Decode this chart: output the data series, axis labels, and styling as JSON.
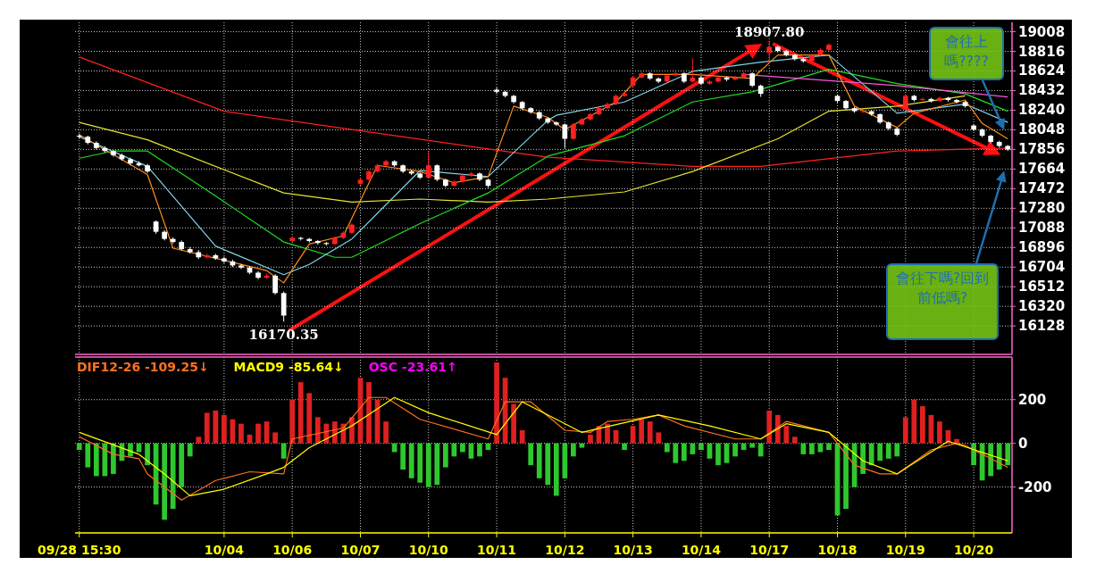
{
  "chart_data": [
    {
      "type": "candlestick",
      "categories": [
        null,
        null,
        null,
        null,
        null,
        null,
        null,
        null,
        null,
        null,
        null,
        null,
        null,
        null,
        null,
        null,
        null,
        null,
        null,
        null,
        null,
        null,
        null,
        null,
        null,
        null,
        null,
        null,
        null,
        null,
        null,
        null,
        null,
        null,
        null,
        null,
        null,
        null,
        null,
        null,
        null,
        null,
        null,
        null,
        null,
        null,
        null,
        null,
        null,
        null,
        null,
        null,
        null,
        null,
        null,
        null,
        null,
        null,
        null,
        null,
        null,
        null,
        null,
        null,
        null,
        null,
        null,
        null,
        null,
        null,
        null,
        null,
        null,
        null,
        null,
        null,
        null,
        null,
        null,
        null,
        null,
        null,
        null,
        null,
        null,
        null,
        null,
        null,
        null,
        null,
        null,
        null,
        null,
        null,
        null,
        null,
        null,
        null,
        null,
        null,
        null,
        null,
        null,
        null,
        null,
        null,
        null,
        null,
        null,
        null
      ],
      "ohlc": [
        [
          17990,
          18010,
          17960,
          17980
        ],
        [
          17980,
          17990,
          17905,
          17920
        ],
        [
          17920,
          17935,
          17855,
          17870
        ],
        [
          17870,
          17885,
          17825,
          17840
        ],
        [
          17840,
          17850,
          17785,
          17800
        ],
        [
          17800,
          17815,
          17745,
          17760
        ],
        [
          17760,
          17775,
          17700,
          17720
        ],
        [
          17720,
          17740,
          17690,
          17700
        ],
        [
          17700,
          17715,
          17625,
          17640
        ],
        [
          17150,
          17160,
          17030,
          17050
        ],
        [
          17050,
          17065,
          16965,
          16980
        ],
        [
          16980,
          16995,
          16935,
          16950
        ],
        [
          16950,
          16965,
          16865,
          16880
        ],
        [
          16880,
          16900,
          16835,
          16850
        ],
        [
          16850,
          16870,
          16785,
          16800
        ],
        [
          16800,
          16835,
          16790,
          16820
        ],
        [
          16820,
          16835,
          16775,
          16790
        ],
        [
          16790,
          16805,
          16745,
          16760
        ],
        [
          16760,
          16775,
          16705,
          16720
        ],
        [
          16720,
          16735,
          16685,
          16700
        ],
        [
          16700,
          16715,
          16635,
          16650
        ],
        [
          16650,
          16665,
          16585,
          16600
        ],
        [
          16600,
          16640,
          16590,
          16620
        ],
        [
          16620,
          16635,
          16435,
          16450
        ],
        [
          16450,
          16465,
          16170.35,
          16230
        ],
        [
          16960,
          17005,
          16950,
          16990
        ],
        [
          16990,
          17000,
          16965,
          16980
        ],
        [
          16980,
          16990,
          16945,
          16960
        ],
        [
          16960,
          16970,
          16925,
          16940
        ],
        [
          16940,
          16950,
          16915,
          16930
        ],
        [
          16930,
          17005,
          16920,
          16990
        ],
        [
          16990,
          17055,
          16980,
          17040
        ],
        [
          17040,
          17135,
          17030,
          17120
        ],
        [
          17520,
          17575,
          17500,
          17560
        ],
        [
          17560,
          17655,
          17550,
          17640
        ],
        [
          17640,
          17715,
          17630,
          17700
        ],
        [
          17700,
          17755,
          17690,
          17740
        ],
        [
          17740,
          17750,
          17685,
          17700
        ],
        [
          17700,
          17710,
          17625,
          17640
        ],
        [
          17640,
          17655,
          17605,
          17620
        ],
        [
          17620,
          17630,
          17565,
          17580
        ],
        [
          17580,
          17843,
          17570,
          17700
        ],
        [
          17700,
          17710,
          17545,
          17560
        ],
        [
          17560,
          17570,
          17485,
          17500
        ],
        [
          17500,
          17555,
          17490,
          17540
        ],
        [
          17540,
          17615,
          17530,
          17600
        ],
        [
          17600,
          17635,
          17590,
          17620
        ],
        [
          17620,
          17630,
          17545,
          17560
        ],
        [
          17560,
          17570,
          17480,
          17500
        ],
        [
          18440,
          18460,
          18400,
          18420
        ],
        [
          18420,
          18430,
          18365,
          18380
        ],
        [
          18380,
          18390,
          18305,
          18320
        ],
        [
          18320,
          18330,
          18245,
          18260
        ],
        [
          18260,
          18270,
          18205,
          18220
        ],
        [
          18220,
          18230,
          18145,
          18160
        ],
        [
          18160,
          18170,
          18105,
          18120
        ],
        [
          18120,
          18130,
          18085,
          18100
        ],
        [
          18100,
          18110,
          17870,
          17960
        ],
        [
          17960,
          18115,
          17950,
          18100
        ],
        [
          18100,
          18165,
          18090,
          18150
        ],
        [
          18150,
          18215,
          18140,
          18200
        ],
        [
          18200,
          18275,
          18190,
          18260
        ],
        [
          18260,
          18315,
          18250,
          18300
        ],
        [
          18300,
          18395,
          18290,
          18380
        ],
        [
          18380,
          18415,
          18370,
          18400
        ],
        [
          18480,
          18575,
          18470,
          18560
        ],
        [
          18560,
          18615,
          18550,
          18600
        ],
        [
          18600,
          18610,
          18535,
          18550
        ],
        [
          18550,
          18560,
          18505,
          18520
        ],
        [
          18520,
          18595,
          18510,
          18580
        ],
        [
          18580,
          18615,
          18570,
          18600
        ],
        [
          18600,
          18610,
          18505,
          18520
        ],
        [
          18520,
          18746,
          18510,
          18560
        ],
        [
          18560,
          18570,
          18485,
          18500
        ],
        [
          18500,
          18535,
          18490,
          18520
        ],
        [
          18520,
          18575,
          18510,
          18560
        ],
        [
          18560,
          18570,
          18525,
          18540
        ],
        [
          18540,
          18575,
          18530,
          18560
        ],
        [
          18560,
          18615,
          18550,
          18600
        ],
        [
          18600,
          18610,
          18465,
          18480
        ],
        [
          18480,
          18490,
          18370,
          18400
        ],
        [
          18800,
          18907.8,
          18700,
          18860
        ],
        [
          18860,
          18870,
          18805,
          18820
        ],
        [
          18820,
          18830,
          18765,
          18780
        ],
        [
          18780,
          18790,
          18725,
          18740
        ],
        [
          18740,
          18750,
          18705,
          18720
        ],
        [
          18720,
          18795,
          18710,
          18780
        ],
        [
          18780,
          18845,
          18770,
          18830
        ],
        [
          18830,
          18895,
          18820,
          18880
        ],
        [
          18380,
          18395,
          18315,
          18330
        ],
        [
          18330,
          18340,
          18245,
          18260
        ],
        [
          18260,
          18270,
          18215,
          18230
        ],
        [
          18230,
          18250,
          18215,
          18230
        ],
        [
          18230,
          18240,
          18185,
          18200
        ],
        [
          18200,
          18210,
          18105,
          18120
        ],
        [
          18120,
          18130,
          18045,
          18060
        ],
        [
          18060,
          18070,
          17985,
          18000
        ],
        [
          18250,
          18395,
          18240,
          18380
        ],
        [
          18380,
          18390,
          18325,
          18340
        ],
        [
          18340,
          18365,
          18330,
          18350
        ],
        [
          18350,
          18360,
          18315,
          18330
        ],
        [
          18330,
          18375,
          18320,
          18360
        ],
        [
          18360,
          18370,
          18325,
          18340
        ],
        [
          18340,
          18350,
          18305,
          18320
        ],
        [
          18320,
          18330,
          18265,
          18280
        ],
        [
          18090,
          18100,
          18035,
          18050
        ],
        [
          18050,
          18060,
          17975,
          17990
        ],
        [
          17990,
          18000,
          17915,
          17930
        ],
        [
          17930,
          17940,
          17875,
          17890
        ],
        [
          17890,
          17900,
          17840,
          17855
        ]
      ],
      "series": [
        {
          "type": "line",
          "color": "#ff2020",
          "values": [
            18760,
            null,
            null,
            null,
            null,
            null,
            null,
            null,
            null,
            null,
            null,
            null,
            null,
            null,
            null,
            null,
            null,
            18230,
            null,
            null,
            null,
            null,
            null,
            null,
            null,
            null,
            null,
            null,
            null,
            null,
            null,
            null,
            18050,
            null,
            null,
            null,
            null,
            null,
            null,
            null,
            null,
            null,
            null,
            null,
            null,
            null,
            null,
            null,
            17860,
            null,
            null,
            null,
            null,
            null,
            null,
            17780,
            null,
            null,
            null,
            null,
            null,
            null,
            null,
            null,
            null,
            null,
            null,
            null,
            null,
            null,
            null,
            null,
            17690,
            null,
            null,
            null,
            null,
            null,
            null,
            null,
            17690,
            null,
            null,
            null,
            null,
            null,
            null,
            null,
            null,
            null,
            null,
            null,
            null,
            null,
            null,
            null,
            17840,
            null,
            null,
            null,
            null,
            null,
            null,
            null,
            null,
            null,
            null,
            null,
            null,
            17870
          ]
        },
        {
          "type": "line",
          "color": "#e6e62e",
          "values": [
            18120,
            null,
            null,
            null,
            null,
            null,
            null,
            null,
            17950,
            null,
            null,
            null,
            null,
            null,
            null,
            null,
            null,
            null,
            null,
            null,
            null,
            null,
            null,
            null,
            17430,
            null,
            null,
            null,
            null,
            null,
            null,
            null,
            17340,
            null,
            null,
            null,
            null,
            null,
            null,
            null,
            17370,
            null,
            null,
            null,
            null,
            null,
            null,
            null,
            17340,
            null,
            null,
            null,
            null,
            null,
            null,
            17370,
            null,
            null,
            null,
            null,
            null,
            null,
            null,
            null,
            17440,
            null,
            null,
            null,
            null,
            null,
            null,
            null,
            17640,
            null,
            null,
            null,
            null,
            null,
            null,
            null,
            null,
            null,
            17960,
            null,
            null,
            null,
            null,
            null,
            18230,
            null,
            null,
            null,
            null,
            null,
            null,
            null,
            18280,
            null,
            null,
            null,
            null,
            null,
            null,
            null,
            18380,
            null,
            null,
            null,
            null,
            null
          ]
        },
        {
          "type": "line",
          "color": "#22dd22",
          "values": [
            17770,
            null,
            null,
            null,
            17840,
            null,
            null,
            null,
            17840,
            null,
            null,
            null,
            null,
            null,
            null,
            null,
            17400,
            null,
            null,
            null,
            null,
            null,
            null,
            null,
            16950,
            null,
            null,
            null,
            null,
            null,
            16800,
            null,
            16800,
            null,
            null,
            null,
            null,
            null,
            null,
            null,
            17130,
            null,
            null,
            null,
            null,
            null,
            null,
            null,
            17430,
            null,
            null,
            null,
            null,
            null,
            null,
            17790,
            null,
            null,
            null,
            null,
            null,
            null,
            null,
            null,
            17990,
            null,
            null,
            null,
            null,
            null,
            null,
            null,
            18320,
            null,
            null,
            null,
            null,
            null,
            null,
            18420,
            null,
            null,
            null,
            null,
            null,
            null,
            null,
            null,
            18640,
            null,
            null,
            null,
            null,
            null,
            null,
            null,
            18500,
            null,
            null,
            null,
            null,
            null,
            null,
            null,
            18400,
            null,
            null,
            null,
            null,
            18230
          ]
        },
        {
          "type": "line",
          "color": "#7fd4e6",
          "values": [
            17980,
            null,
            null,
            null,
            null,
            null,
            null,
            null,
            17690,
            null,
            null,
            null,
            null,
            null,
            null,
            null,
            16910,
            null,
            null,
            null,
            null,
            null,
            null,
            null,
            16630,
            null,
            null,
            16730,
            null,
            null,
            null,
            null,
            16980,
            null,
            null,
            null,
            null,
            null,
            null,
            null,
            17650,
            null,
            null,
            null,
            null,
            null,
            null,
            null,
            17590,
            null,
            null,
            null,
            null,
            null,
            null,
            18140,
            18190,
            null,
            null,
            null,
            null,
            null,
            null,
            null,
            18320,
            null,
            null,
            null,
            null,
            null,
            null,
            null,
            18620,
            null,
            null,
            null,
            null,
            null,
            null,
            null,
            18710,
            null,
            null,
            null,
            null,
            null,
            null,
            null,
            18780,
            null,
            null,
            null,
            null,
            null,
            null,
            null,
            18210,
            null,
            null,
            null,
            null,
            null,
            null,
            null,
            18300,
            null,
            null,
            null,
            null,
            18120
          ]
        },
        {
          "type": "line",
          "color": "#ff55dd",
          "values": [
            null,
            null,
            null,
            null,
            null,
            null,
            null,
            null,
            null,
            null,
            null,
            null,
            null,
            null,
            null,
            null,
            null,
            null,
            null,
            null,
            null,
            null,
            null,
            null,
            null,
            null,
            null,
            null,
            null,
            null,
            null,
            null,
            null,
            null,
            null,
            null,
            null,
            null,
            null,
            null,
            null,
            null,
            null,
            null,
            null,
            null,
            null,
            null,
            null,
            null,
            null,
            null,
            null,
            null,
            null,
            null,
            null,
            null,
            null,
            null,
            null,
            null,
            null,
            null,
            null,
            null,
            null,
            null,
            null,
            null,
            null,
            null,
            null,
            null,
            null,
            null,
            null,
            null,
            18590,
            null,
            null,
            null,
            null,
            null,
            null,
            null,
            null,
            null,
            null,
            null,
            null,
            null,
            null,
            null,
            null,
            null,
            18480,
            null,
            null,
            null,
            null,
            null,
            null,
            null,
            null,
            null,
            null,
            null,
            null,
            18370
          ]
        },
        {
          "type": "line",
          "color": "#ff8c1a",
          "values": [
            18000,
            null,
            null,
            null,
            null,
            null,
            null,
            null,
            17610,
            null,
            null,
            16890,
            null,
            null,
            null,
            null,
            null,
            null,
            null,
            null,
            null,
            null,
            16670,
            null,
            16550,
            null,
            null,
            16930,
            null,
            null,
            null,
            17010,
            null,
            null,
            null,
            17700,
            null,
            null,
            null,
            null,
            17640,
            null,
            null,
            null,
            17530,
            null,
            null,
            null,
            17590,
            null,
            null,
            18280,
            null,
            null,
            null,
            18170,
            null,
            18050,
            null,
            null,
            null,
            null,
            null,
            18320,
            null,
            null,
            18590,
            null,
            null,
            null,
            null,
            null,
            18590,
            null,
            null,
            null,
            null,
            null,
            null,
            18550,
            null,
            null,
            18780,
            null,
            null,
            null,
            null,
            null,
            18780,
            null,
            null,
            18280,
            null,
            null,
            null,
            null,
            18070,
            null,
            18210,
            null,
            null,
            null,
            null,
            null,
            18340,
            null,
            18110,
            null,
            null,
            17960
          ]
        }
      ],
      "ylim": [
        15850,
        19100
      ],
      "yticks": [
        16128,
        16320,
        16512,
        16704,
        16896,
        17088,
        17280,
        17472,
        17664,
        17856,
        18048,
        18240,
        18432,
        18624,
        18816,
        19008
      ],
      "grid": true,
      "tick_labels": "y",
      "annotations": [
        {
          "text": "16170.35",
          "y": 16170.35
        },
        {
          "text": "18907.80",
          "y": 18907.8
        },
        "會往上嗎????",
        "會往下嗎?回到前低嗎?"
      ]
    },
    {
      "type": "bar",
      "categories": [
        "09/28 15:30",
        null,
        null,
        null,
        null,
        null,
        null,
        null,
        null,
        null,
        null,
        null,
        null,
        null,
        null,
        null,
        null,
        "10/04",
        null,
        null,
        null,
        null,
        null,
        null,
        null,
        "10/06",
        null,
        null,
        null,
        null,
        null,
        null,
        null,
        "10/07",
        null,
        null,
        null,
        null,
        null,
        null,
        null,
        "10/10",
        null,
        null,
        null,
        null,
        null,
        null,
        null,
        "10/11",
        null,
        null,
        null,
        null,
        null,
        null,
        null,
        "10/12",
        null,
        null,
        null,
        null,
        null,
        null,
        null,
        "10/13",
        null,
        null,
        null,
        null,
        null,
        null,
        null,
        "10/14",
        null,
        null,
        null,
        null,
        null,
        null,
        null,
        "10/17",
        null,
        null,
        null,
        null,
        null,
        null,
        null,
        "10/18",
        null,
        null,
        null,
        null,
        null,
        null,
        null,
        "10/19",
        null,
        null,
        null,
        null,
        null,
        null,
        null,
        "10/20",
        null,
        null,
        null,
        null
      ],
      "series": [
        {
          "name": "DIF12-26 -109.25↓",
          "type": "line",
          "color": "#ff7020",
          "values": [
            30,
            null,
            null,
            null,
            -50,
            null,
            null,
            -70,
            -140,
            null,
            null,
            null,
            -260,
            null,
            null,
            null,
            -170,
            null,
            null,
            null,
            -130,
            null,
            null,
            null,
            -140,
            20,
            null,
            null,
            null,
            null,
            null,
            70,
            null,
            null,
            210,
            null,
            210,
            null,
            null,
            null,
            110,
            null,
            null,
            null,
            null,
            null,
            null,
            null,
            20,
            null,
            190,
            null,
            null,
            190,
            null,
            null,
            null,
            60,
            null,
            null,
            50,
            null,
            100,
            null,
            null,
            110,
            null,
            null,
            130,
            null,
            null,
            80,
            null,
            null,
            null,
            null,
            null,
            20,
            null,
            null,
            20,
            null,
            null,
            100,
            null,
            null,
            null,
            null,
            50,
            null,
            null,
            -100,
            null,
            null,
            -140,
            null,
            -140,
            null,
            null,
            null,
            -30,
            null,
            null,
            0,
            -10,
            null,
            null,
            null,
            null,
            -110
          ]
        },
        {
          "name": "MACD9 -85.64↓",
          "type": "line",
          "color": "#ffff00",
          "values": [
            50,
            null,
            null,
            null,
            null,
            null,
            null,
            -50,
            null,
            null,
            -140,
            null,
            null,
            -240,
            null,
            null,
            null,
            -210,
            null,
            null,
            null,
            null,
            -140,
            null,
            -110,
            null,
            null,
            -20,
            null,
            null,
            null,
            null,
            80,
            null,
            null,
            null,
            null,
            210,
            null,
            null,
            null,
            140,
            null,
            null,
            null,
            null,
            null,
            null,
            null,
            40,
            null,
            null,
            190,
            null,
            null,
            null,
            110,
            null,
            null,
            50,
            null,
            null,
            null,
            null,
            null,
            null,
            null,
            null,
            130,
            null,
            null,
            null,
            null,
            null,
            80,
            null,
            null,
            null,
            null,
            null,
            20,
            null,
            null,
            90,
            null,
            null,
            null,
            null,
            50,
            null,
            null,
            null,
            -80,
            null,
            null,
            null,
            -140,
            null,
            null,
            null,
            null,
            null,
            10,
            null,
            null,
            null,
            null,
            null,
            null,
            -80
          ]
        },
        {
          "name": "OSC -23.61↑",
          "type": "bar",
          "color": "#ff00ff",
          "colors": [
            "#2ec82e",
            "#2ec82e",
            "#2ec82e",
            "#2ec82e",
            "#2ec82e",
            "#2ec82e",
            "#2ec82e",
            "#2ec82e",
            "#2ec82e",
            "#2ec82e",
            "#2ec82e",
            "#2ec82e",
            "#2ec82e",
            "#2ec82e",
            "#e02020",
            "#e02020",
            "#e02020",
            "#e02020",
            "#e02020",
            "#e02020",
            "#e02020",
            "#e02020",
            "#e02020",
            "#e02020",
            "#2ec82e",
            "#e02020",
            "#e02020",
            "#e02020",
            "#e02020",
            "#e02020",
            "#e02020",
            "#e02020",
            "#e02020",
            "#e02020",
            "#e02020",
            "#e02020",
            "#e02020",
            "#2ec82e",
            "#2ec82e",
            "#2ec82e",
            "#2ec82e",
            "#2ec82e",
            "#2ec82e",
            "#2ec82e",
            "#2ec82e",
            "#2ec82e",
            "#2ec82e",
            "#2ec82e",
            "#2ec82e",
            "#e02020",
            "#e02020",
            "#e02020",
            "#e02020",
            "#2ec82e",
            "#2ec82e",
            "#2ec82e",
            "#2ec82e",
            "#2ec82e",
            "#2ec82e",
            "#2ec82e",
            "#e02020",
            "#e02020",
            "#e02020",
            "#e02020",
            "#2ec82e",
            "#e02020",
            "#e02020",
            "#e02020",
            "#e02020",
            "#2ec82e",
            "#2ec82e",
            "#2ec82e",
            "#2ec82e",
            "#2ec82e",
            "#2ec82e",
            "#2ec82e",
            "#2ec82e",
            "#2ec82e",
            "#2ec82e",
            "#2ec82e",
            "#2ec82e",
            "#e02020",
            "#e02020",
            "#e02020",
            "#e02020",
            "#2ec82e",
            "#2ec82e",
            "#2ec82e",
            "#2ec82e",
            "#2ec82e",
            "#2ec82e",
            "#2ec82e",
            "#2ec82e",
            "#2ec82e",
            "#2ec82e",
            "#2ec82e",
            "#2ec82e",
            "#e02020",
            "#e02020",
            "#e02020",
            "#e02020",
            "#e02020",
            "#e02020",
            "#e02020",
            null,
            "#2ec82e",
            "#2ec82e",
            "#2ec82e",
            "#2ec82e",
            "#2ec82e"
          ],
          "values": [
            -30,
            -110,
            -150,
            -150,
            -140,
            -80,
            -60,
            -40,
            -100,
            -280,
            -350,
            -300,
            -200,
            -60,
            30,
            140,
            150,
            130,
            110,
            90,
            40,
            90,
            100,
            50,
            -70,
            200,
            280,
            230,
            120,
            90,
            100,
            90,
            120,
            300,
            280,
            200,
            100,
            -40,
            -120,
            -160,
            -180,
            -200,
            -190,
            -110,
            -60,
            -40,
            -70,
            -60,
            -30,
            370,
            300,
            180,
            60,
            -100,
            -160,
            -190,
            -240,
            -160,
            -60,
            -20,
            40,
            80,
            90,
            60,
            -30,
            80,
            110,
            100,
            50,
            -40,
            -90,
            -80,
            -50,
            -30,
            -70,
            -100,
            -90,
            -60,
            -30,
            -20,
            -60,
            150,
            130,
            80,
            30,
            -50,
            -50,
            -40,
            -30,
            -330,
            -300,
            -200,
            -140,
            -100,
            -80,
            -70,
            -60,
            120,
            200,
            170,
            130,
            100,
            60,
            20,
            null,
            -100,
            -170,
            -150,
            -120,
            -100
          ]
        }
      ],
      "ylim": [
        -410,
        395
      ],
      "yticks": [
        -200,
        0,
        200
      ],
      "grid": true,
      "legend": "top left"
    }
  ]
}
